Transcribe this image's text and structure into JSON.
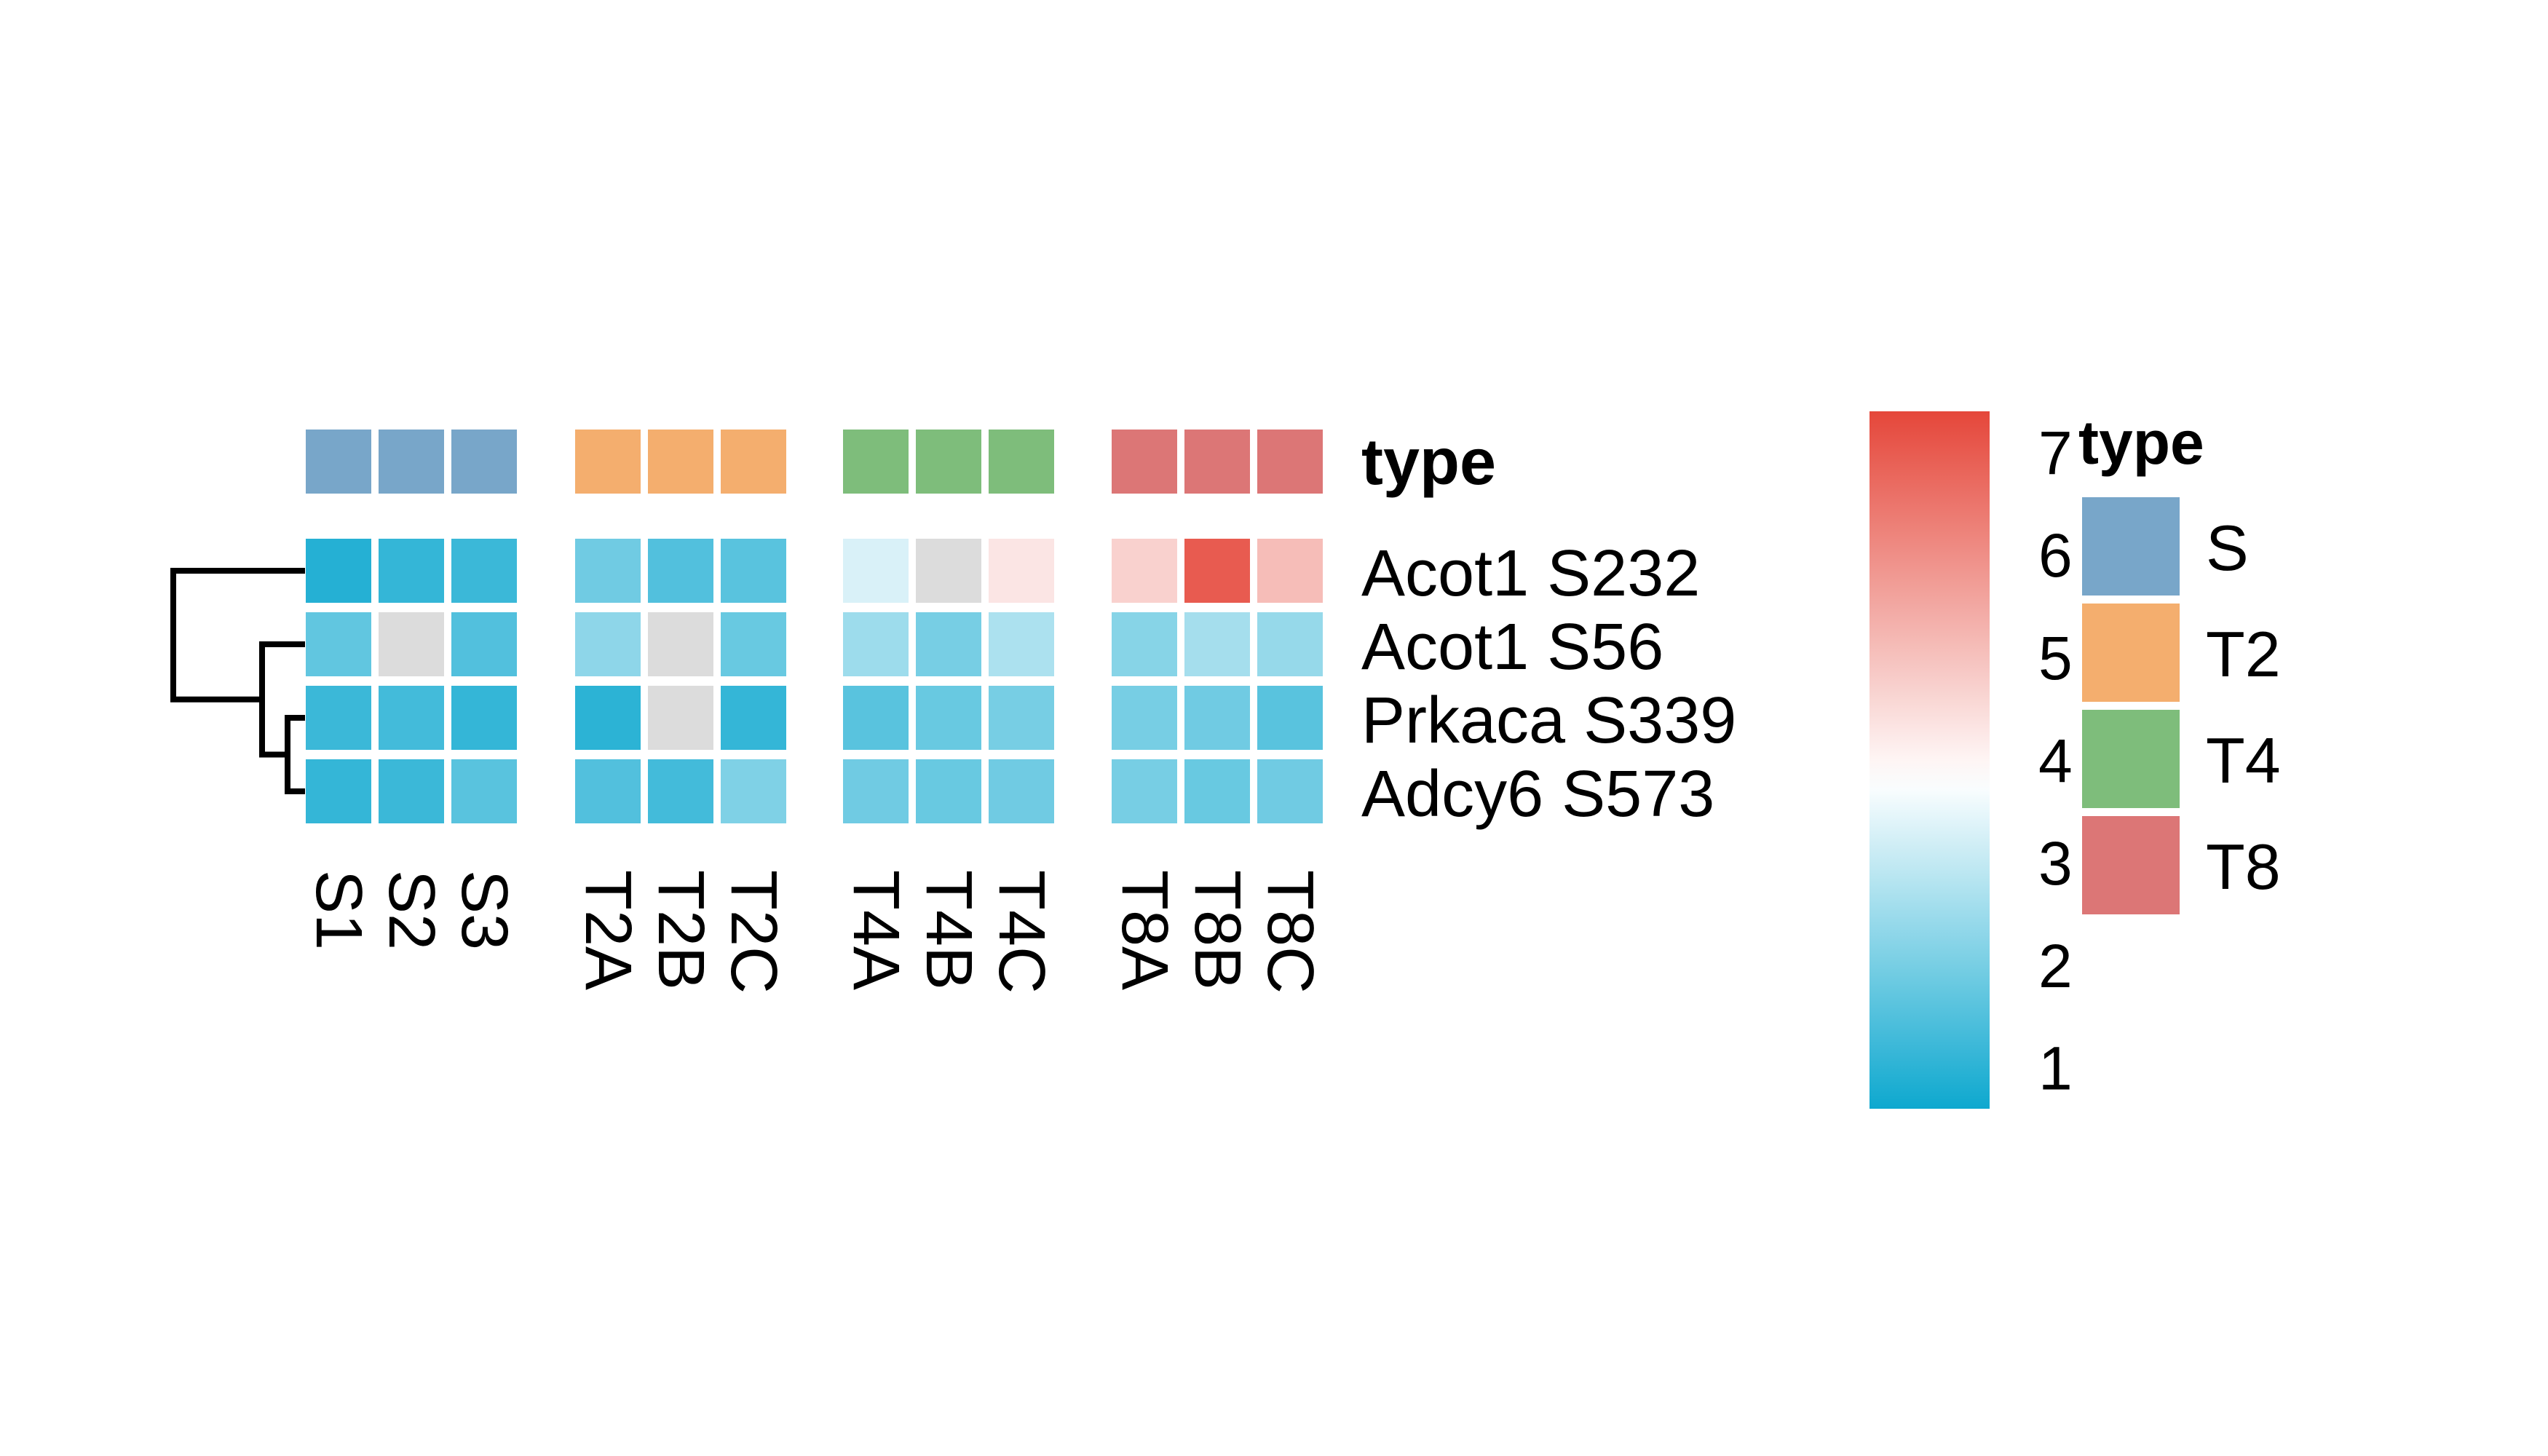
{
  "chart_data": {
    "type": "heatmap",
    "rows": [
      "Acot1 S232",
      "Acot1 S56",
      "Prkaca S339",
      "Adcy6 S573"
    ],
    "columns": [
      [
        "S1",
        "S2",
        "S3"
      ],
      [
        "T2A",
        "T2B",
        "T2C"
      ],
      [
        "T4A",
        "T4B",
        "T4C"
      ],
      [
        "T8A",
        "T8B",
        "T8C"
      ]
    ],
    "values": [
      [
        0.9,
        1.1,
        1.2,
        1.9,
        1.5,
        1.6,
        3.3,
        null,
        4.3,
        4.7,
        7.0,
        5.1
      ],
      [
        1.7,
        null,
        1.5,
        2.3,
        null,
        1.8,
        2.5,
        2.0,
        2.7,
        2.2,
        2.6,
        2.4
      ],
      [
        1.2,
        1.3,
        1.1,
        1.0,
        null,
        1.1,
        1.6,
        1.8,
        2.0,
        2.0,
        1.9,
        1.6
      ],
      [
        1.1,
        1.2,
        1.6,
        1.5,
        1.3,
        2.1,
        1.9,
        1.8,
        1.9,
        2.0,
        1.8,
        1.9
      ]
    ],
    "colorscale": {
      "low_color": "#0ea8cf",
      "mid_color": "#ffffff",
      "high_color": "#e5473a",
      "missing_color": "#dcdcdc",
      "min": 0.6,
      "mid": 3.8,
      "max": 7.4
    },
    "annotation": {
      "title": "type",
      "groups": [
        {
          "name": "S",
          "color": "#78a6c9"
        },
        {
          "name": "T2",
          "color": "#f4ae6e"
        },
        {
          "name": "T4",
          "color": "#7ebd7b"
        },
        {
          "name": "T8",
          "color": "#dc7676"
        }
      ]
    },
    "legend": {
      "title": "type",
      "ticks": [
        7,
        6,
        5,
        4,
        3,
        2,
        1
      ]
    },
    "dendrogram": "rows"
  }
}
